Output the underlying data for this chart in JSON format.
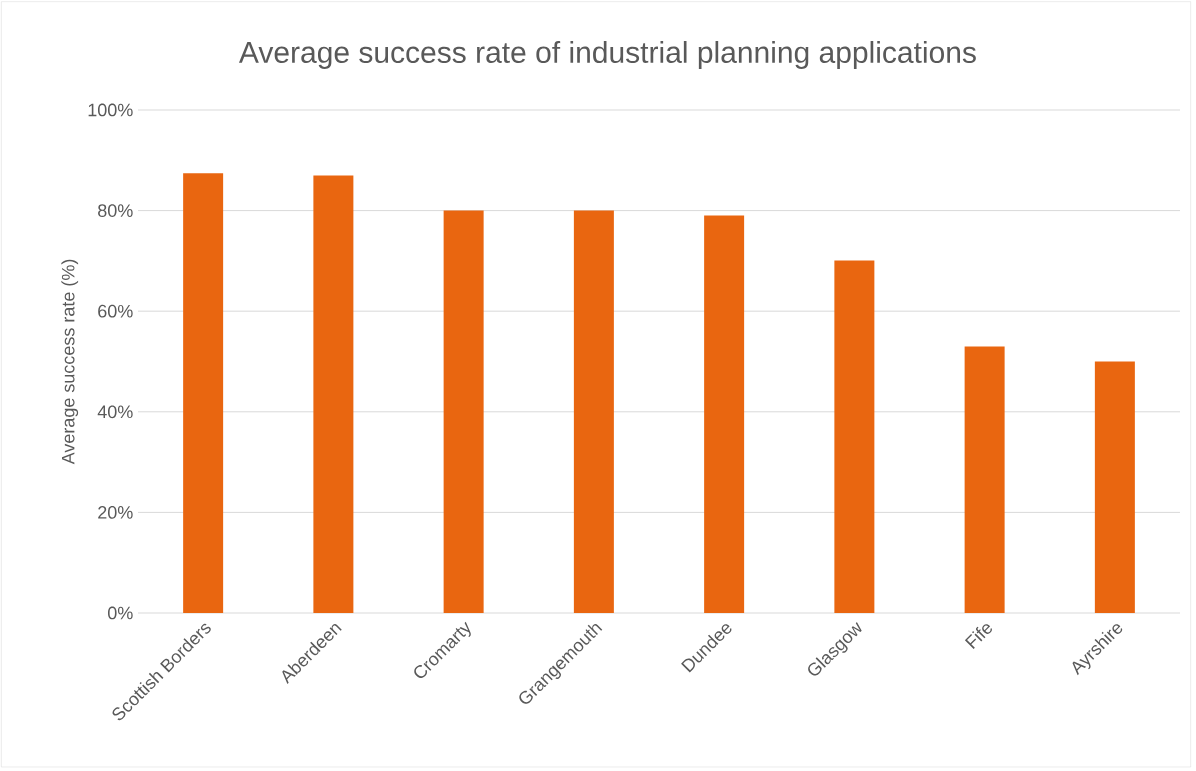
{
  "chart_data": {
    "type": "bar",
    "title": "Average success rate of industrial planning applications",
    "ylabel": "Average success rate (%)",
    "categories": [
      "Scottish Borders",
      "Aberdeen",
      "Cromarty",
      "Grangemouth",
      "Dundee",
      "Glasgow",
      "Fife",
      "Ayrshire"
    ],
    "values": [
      87.4,
      87,
      80,
      80,
      79,
      70.1,
      53,
      50
    ],
    "color": "#e96610",
    "ylim": [
      0,
      100
    ],
    "yticks": [
      {
        "value": 0,
        "label": "0%"
      },
      {
        "value": 20,
        "label": "20%"
      },
      {
        "value": 40,
        "label": "40%"
      },
      {
        "value": 60,
        "label": "60%"
      },
      {
        "value": 80,
        "label": "80%"
      },
      {
        "value": 100,
        "label": "100%"
      }
    ],
    "grid": "y"
  }
}
